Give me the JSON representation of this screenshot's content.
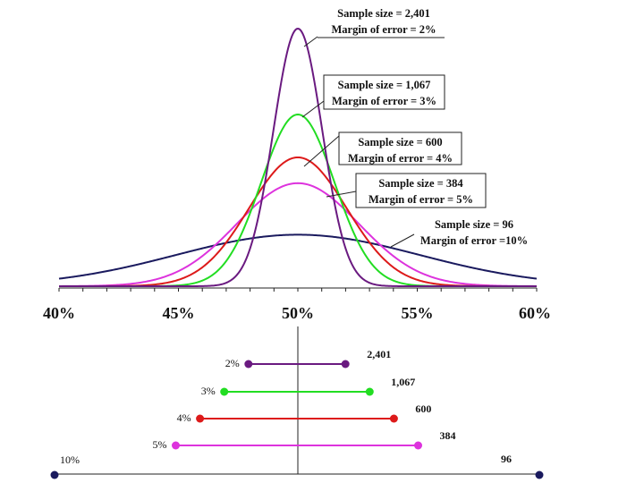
{
  "chart_data": [
    {
      "type": "line",
      "title": "",
      "xlabel": "",
      "ylabel": "",
      "xlim": [
        40,
        60
      ],
      "x_tick_labels": [
        "40%",
        "45%",
        "50%",
        "55%",
        "60%"
      ],
      "x_tick_values": [
        40,
        45,
        50,
        55,
        60
      ],
      "mean": 50,
      "series": [
        {
          "name": "n2401",
          "sample_size_label": "Sample size = 2,401",
          "moe_label": "Margin of error = 2%",
          "sample_size": 2401,
          "margin_of_error": 2,
          "color": "#6a1a80"
        },
        {
          "name": "n1067",
          "sample_size_label": "Sample size = 1,067",
          "moe_label": "Margin of error = 3%",
          "sample_size": 1067,
          "margin_of_error": 3,
          "color": "#22dd22"
        },
        {
          "name": "n600",
          "sample_size_label": "Sample size = 600",
          "moe_label": "Margin of error = 4%",
          "sample_size": 600,
          "margin_of_error": 4,
          "color": "#dd1a1a"
        },
        {
          "name": "n384",
          "sample_size_label": "Sample size = 384",
          "moe_label": "Margin of error = 5%",
          "sample_size": 384,
          "margin_of_error": 5,
          "color": "#dd33dd"
        },
        {
          "name": "n96",
          "sample_size_label": "Sample size = 96",
          "moe_label": "Margin of error =10%",
          "sample_size": 96,
          "margin_of_error": 10,
          "color": "#1a1a5e"
        }
      ]
    },
    {
      "type": "interval",
      "center": 50,
      "intervals": [
        {
          "moe_label": "2%",
          "n_label": "2,401",
          "low": 48,
          "high": 52,
          "color": "#6a1a80"
        },
        {
          "moe_label": "3%",
          "n_label": "1,067",
          "low": 47,
          "high": 53,
          "color": "#22dd22"
        },
        {
          "moe_label": "4%",
          "n_label": "600",
          "low": 46,
          "high": 54,
          "color": "#dd1a1a"
        },
        {
          "moe_label": "5%",
          "n_label": "384",
          "low": 45,
          "high": 55,
          "color": "#dd33dd"
        },
        {
          "moe_label": "10%",
          "n_label": "96",
          "low": 40,
          "high": 60,
          "color": "#1a1a5e"
        }
      ]
    }
  ]
}
